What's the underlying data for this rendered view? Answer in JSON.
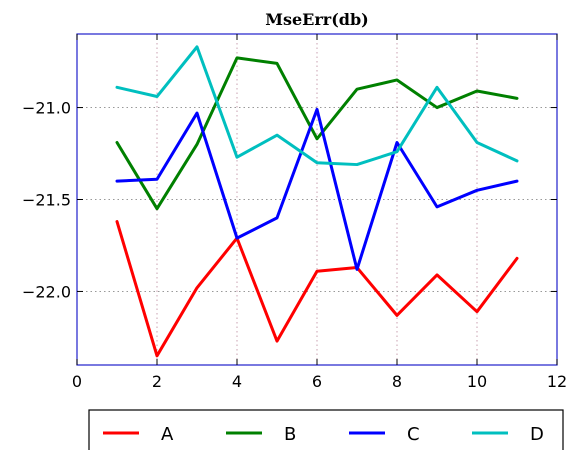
{
  "chart_data": {
    "type": "line",
    "title": "MseErr(db)",
    "xlabel": "",
    "ylabel": "",
    "xlim": [
      0,
      12
    ],
    "ylim": [
      -22.4,
      -20.6
    ],
    "x_ticks": [
      0,
      2,
      4,
      6,
      8,
      10,
      12
    ],
    "y_ticks": [
      -22.0,
      -21.5,
      -21.0
    ],
    "x_tick_labels": [
      "0",
      "2",
      "4",
      "6",
      "8",
      "10",
      "12"
    ],
    "y_tick_labels": [
      "−22.0",
      "−21.5",
      "−21.0"
    ],
    "grid": true,
    "legend_position": "bottom",
    "x": [
      1,
      2,
      3,
      4,
      5,
      6,
      7,
      8,
      9,
      10,
      11
    ],
    "series": [
      {
        "name": "A",
        "color": "#ff0000",
        "values": [
          -21.62,
          -22.35,
          -21.98,
          -21.71,
          -22.27,
          -21.89,
          -21.87,
          -22.13,
          -21.91,
          -22.11,
          -21.82
        ]
      },
      {
        "name": "B",
        "color": "#008000",
        "values": [
          -21.19,
          -21.55,
          -21.2,
          -20.73,
          -20.76,
          -21.17,
          -20.9,
          -20.85,
          -21.0,
          -20.91,
          -20.95
        ]
      },
      {
        "name": "C",
        "color": "#0000ff",
        "values": [
          -21.4,
          -21.39,
          -21.03,
          -21.71,
          -21.6,
          -21.01,
          -21.88,
          -21.19,
          -21.54,
          -21.45,
          -21.4
        ]
      },
      {
        "name": "D",
        "color": "#00bfbf",
        "values": [
          -20.89,
          -20.94,
          -20.67,
          -21.27,
          -21.15,
          -21.3,
          -21.31,
          -21.24,
          -20.89,
          -21.19,
          -21.29
        ]
      }
    ]
  }
}
